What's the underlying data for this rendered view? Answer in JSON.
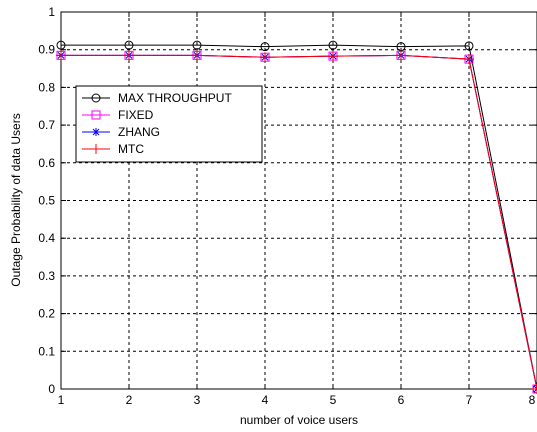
{
  "chart_data": {
    "type": "line",
    "title": "",
    "xlabel": "number of voice users",
    "ylabel": "Outage Probability of data Users",
    "x": [
      1,
      2,
      3,
      4,
      5,
      6,
      7,
      8
    ],
    "xlim": [
      1,
      8
    ],
    "ylim": [
      0,
      1
    ],
    "xticks": [
      "1",
      "2",
      "3",
      "4",
      "5",
      "6",
      "7",
      "8"
    ],
    "yticks": [
      "0",
      "0.1",
      "0.2",
      "0.3",
      "0.4",
      "0.5",
      "0.6",
      "0.7",
      "0.8",
      "0.9",
      "1"
    ],
    "grid": true,
    "legend_position": "upper-left",
    "series": [
      {
        "name": "MAX THROUGHPUT",
        "color": "#000000",
        "marker": "circle",
        "values": [
          0.912,
          0.912,
          0.912,
          0.908,
          0.912,
          0.908,
          0.91,
          0.0
        ]
      },
      {
        "name": "FIXED",
        "color": "#ff00ff",
        "marker": "square",
        "values": [
          0.885,
          0.885,
          0.885,
          0.88,
          0.883,
          0.885,
          0.875,
          0.0
        ]
      },
      {
        "name": "ZHANG",
        "color": "#0000ff",
        "marker": "asterisk",
        "values": [
          0.885,
          0.885,
          0.885,
          0.88,
          0.883,
          0.885,
          0.875,
          0.0
        ]
      },
      {
        "name": "MTC",
        "color": "#ff0000",
        "marker": "plus",
        "values": [
          0.885,
          0.885,
          0.885,
          0.88,
          0.883,
          0.885,
          0.875,
          0.0
        ]
      }
    ]
  }
}
